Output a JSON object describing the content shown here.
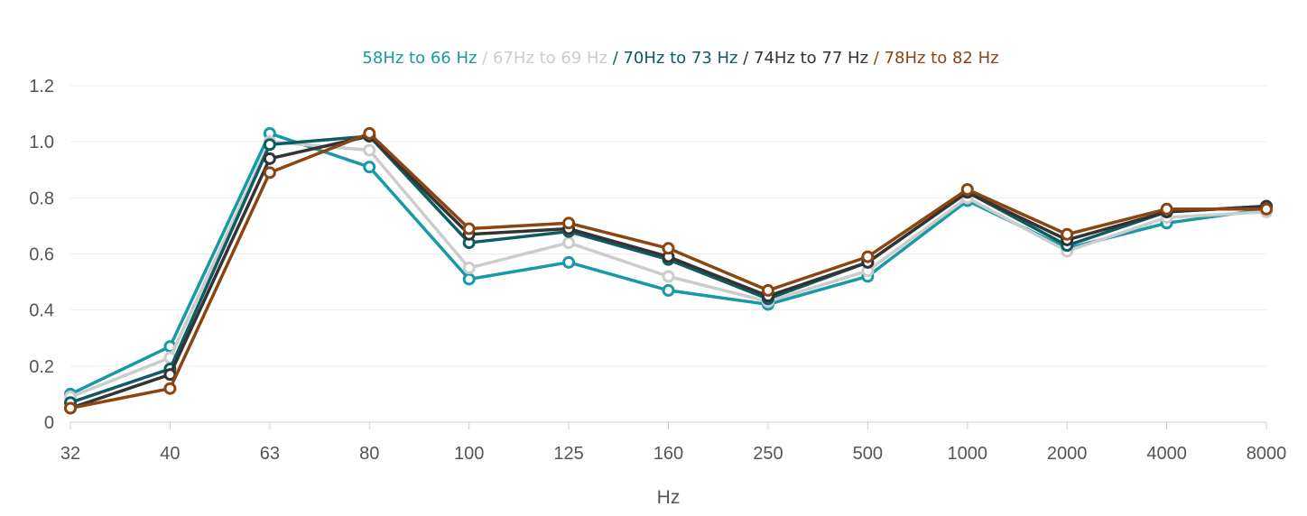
{
  "chart_data": {
    "type": "line",
    "xlabel": "Hz",
    "ylabel": "",
    "ylim": [
      0,
      1.2
    ],
    "yticks": [
      "0",
      "0.2",
      "0.4",
      "0.6",
      "0.8",
      "1.0",
      "1.2"
    ],
    "categories": [
      "32",
      "40",
      "63",
      "80",
      "100",
      "125",
      "160",
      "250",
      "500",
      "1000",
      "2000",
      "4000",
      "8000"
    ],
    "grid": true,
    "legend_position": "top-center",
    "series": [
      {
        "name": "58Hz to 66 Hz",
        "color": "#1799a6",
        "values": [
          0.1,
          0.27,
          1.03,
          0.91,
          0.51,
          0.57,
          0.47,
          0.42,
          0.52,
          0.79,
          0.62,
          0.71,
          0.76
        ]
      },
      {
        "name": "67Hz to 69 Hz",
        "color": "#cccccc",
        "values": [
          0.09,
          0.23,
          1.0,
          0.97,
          0.55,
          0.64,
          0.52,
          0.43,
          0.54,
          0.8,
          0.61,
          0.73,
          0.75
        ]
      },
      {
        "name": "70Hz to 73 Hz",
        "color": "#0e5c63",
        "values": [
          0.07,
          0.19,
          0.99,
          1.02,
          0.64,
          0.68,
          0.58,
          0.44,
          0.57,
          0.82,
          0.63,
          0.75,
          0.77
        ]
      },
      {
        "name": "74Hz to 77 Hz",
        "color": "#333333",
        "values": [
          0.05,
          0.17,
          0.94,
          1.02,
          0.67,
          0.69,
          0.59,
          0.45,
          0.57,
          0.82,
          0.65,
          0.75,
          0.77
        ]
      },
      {
        "name": "78Hz to 82 Hz",
        "color": "#8c4510",
        "values": [
          0.05,
          0.12,
          0.89,
          1.03,
          0.69,
          0.71,
          0.62,
          0.47,
          0.59,
          0.83,
          0.67,
          0.76,
          0.76
        ]
      }
    ]
  }
}
